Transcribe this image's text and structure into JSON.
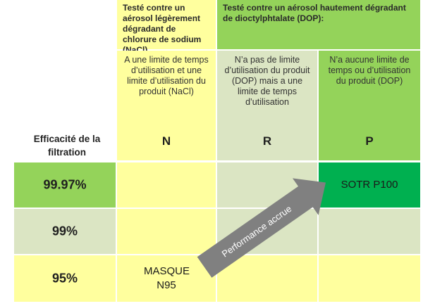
{
  "header": {
    "nacl_prefix": "Testé contre un aérosol légèrement dégradant de chlorure de sodium (",
    "nacl_abbr": "NaCl",
    "nacl_suffix": ")",
    "dop": "Testé contre un aérosol hautement dégradant de dioctylphtalate (DOP):"
  },
  "descriptions": {
    "n": "A une limite de temps d’utilisation et une limite d’utilisation du produit (NaCl)",
    "r": "N’a pas de limite d’utilisation du produit (DOP) mais a une limite de temps d’utilisation",
    "p": "N’a aucune limite de temps ou d’utilisation du produit (DOP)"
  },
  "efficacy_label": "Efficacité de la filtration",
  "classes": {
    "n": "N",
    "r": "R",
    "p": "P"
  },
  "rows": {
    "r9997": "99.97%",
    "r99": "99%",
    "r95": "95%"
  },
  "products": {
    "sotr": "SOTR P100",
    "masque": "MASQUE N95"
  },
  "arrow_label": "Performance accrue",
  "colors": {
    "yellow": "#ffff9e",
    "sage": "#dbe5c3",
    "light_green": "#94d35a",
    "dark_green": "#00b050",
    "arrow_gray": "#808080"
  }
}
